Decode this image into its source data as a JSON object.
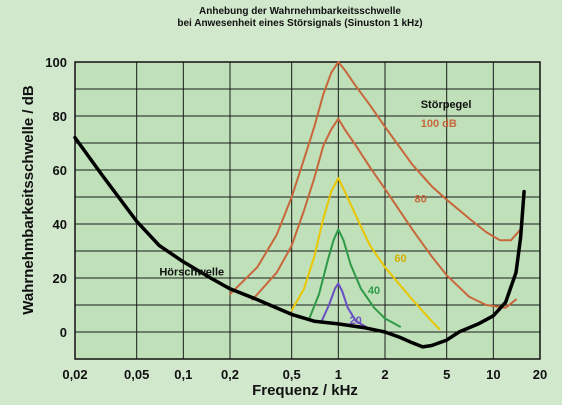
{
  "chart_data": {
    "type": "line",
    "title": "Anhebung der Wahrnehmbarkeitsschwelle",
    "subtitle": "bei Anwesenheit eines Störsignals (Sinuston 1 kHz)",
    "xlabel": "Frequenz / kHz",
    "ylabel": "Wahrnehmbarkeitsschwelle / dB",
    "x_scale": "log",
    "xlim": [
      0.02,
      20
    ],
    "ylim": [
      -10,
      100
    ],
    "x_ticks": [
      0.02,
      0.05,
      0.1,
      0.2,
      0.5,
      1,
      2,
      5,
      10,
      20
    ],
    "x_tick_labels": [
      "0,02",
      "0,05",
      "0,1",
      "0,2",
      "0,5",
      "1",
      "2",
      "5",
      "10",
      "20"
    ],
    "y_ticks": [
      0,
      20,
      40,
      60,
      80,
      100
    ],
    "y_tick_labels": [
      "0",
      "20",
      "40",
      "60",
      "80",
      "100"
    ],
    "grid": true,
    "legend_title": "Störpegel",
    "series": [
      {
        "name": "Hörschwelle",
        "color": "#000000",
        "points": [
          [
            0.02,
            72
          ],
          [
            0.03,
            58
          ],
          [
            0.05,
            41
          ],
          [
            0.07,
            32
          ],
          [
            0.1,
            26
          ],
          [
            0.15,
            20
          ],
          [
            0.2,
            16
          ],
          [
            0.3,
            12
          ],
          [
            0.5,
            6.5
          ],
          [
            0.7,
            4
          ],
          [
            1,
            3
          ],
          [
            1.5,
            1.5
          ],
          [
            2,
            0
          ],
          [
            2.5,
            -2
          ],
          [
            3,
            -4
          ],
          [
            3.5,
            -5.5
          ],
          [
            4,
            -5
          ],
          [
            5,
            -3
          ],
          [
            6,
            0
          ],
          [
            8,
            3
          ],
          [
            10,
            6
          ],
          [
            12,
            11
          ],
          [
            14,
            22
          ],
          [
            15,
            35
          ],
          [
            15.8,
            52
          ]
        ]
      },
      {
        "name": "100 dB",
        "color": "#c8663c",
        "points": [
          [
            0.2,
            14
          ],
          [
            0.3,
            24
          ],
          [
            0.4,
            36
          ],
          [
            0.5,
            50
          ],
          [
            0.6,
            64
          ],
          [
            0.7,
            76
          ],
          [
            0.8,
            88
          ],
          [
            0.9,
            96
          ],
          [
            1,
            100
          ],
          [
            1.1,
            97
          ],
          [
            1.3,
            91
          ],
          [
            1.6,
            84
          ],
          [
            2,
            76
          ],
          [
            3,
            62
          ],
          [
            4,
            54
          ],
          [
            5,
            49
          ],
          [
            7,
            42
          ],
          [
            9,
            37
          ],
          [
            11,
            34
          ],
          [
            13,
            34
          ],
          [
            15,
            38
          ]
        ]
      },
      {
        "name": "80",
        "color": "#c8663c",
        "points": [
          [
            0.28,
            12
          ],
          [
            0.4,
            22
          ],
          [
            0.5,
            32
          ],
          [
            0.6,
            45
          ],
          [
            0.7,
            57
          ],
          [
            0.8,
            69
          ],
          [
            0.9,
            75
          ],
          [
            1,
            79
          ],
          [
            1.1,
            75
          ],
          [
            1.3,
            69
          ],
          [
            1.6,
            61
          ],
          [
            2,
            53
          ],
          [
            3,
            38
          ],
          [
            4,
            28
          ],
          [
            5,
            21
          ],
          [
            7,
            13
          ],
          [
            9,
            10
          ],
          [
            12,
            9
          ],
          [
            14,
            12
          ]
        ]
      },
      {
        "name": "60",
        "color": "#e9c600",
        "points": [
          [
            0.5,
            8
          ],
          [
            0.6,
            16
          ],
          [
            0.7,
            28
          ],
          [
            0.8,
            42
          ],
          [
            0.9,
            52
          ],
          [
            1,
            57
          ],
          [
            1.1,
            52
          ],
          [
            1.3,
            43
          ],
          [
            1.6,
            32
          ],
          [
            2,
            24
          ],
          [
            3,
            12
          ],
          [
            4,
            4
          ],
          [
            4.5,
            1
          ]
        ]
      },
      {
        "name": "40",
        "color": "#2f9a48",
        "points": [
          [
            0.65,
            5
          ],
          [
            0.75,
            14
          ],
          [
            0.85,
            26
          ],
          [
            0.93,
            34
          ],
          [
            1,
            38
          ],
          [
            1.08,
            34
          ],
          [
            1.2,
            25
          ],
          [
            1.4,
            16
          ],
          [
            1.7,
            9
          ],
          [
            2,
            5
          ],
          [
            2.5,
            2
          ]
        ]
      },
      {
        "name": "20",
        "color": "#6a4fc2",
        "points": [
          [
            0.78,
            4
          ],
          [
            0.87,
            10
          ],
          [
            0.95,
            16
          ],
          [
            1,
            18
          ],
          [
            1.06,
            15
          ],
          [
            1.15,
            9
          ],
          [
            1.3,
            4
          ],
          [
            1.5,
            2
          ]
        ]
      }
    ],
    "annotations": [
      {
        "text": "Störpegel",
        "x": 3.4,
        "y": 83,
        "color": "#111111"
      },
      {
        "text": "100 dB",
        "x": 3.4,
        "y": 76,
        "color": "#c8663c"
      },
      {
        "text": "80",
        "x": 3.1,
        "y": 48,
        "color": "#c8663c"
      },
      {
        "text": "60",
        "x": 2.3,
        "y": 26,
        "color": "#d4b000"
      },
      {
        "text": "40",
        "x": 1.55,
        "y": 14,
        "color": "#2f9a48"
      },
      {
        "text": "20",
        "x": 1.18,
        "y": 3,
        "color": "#6a4fc2"
      },
      {
        "text": "Hörschwelle",
        "x": 0.07,
        "y": 21,
        "color": "#111111"
      }
    ]
  }
}
